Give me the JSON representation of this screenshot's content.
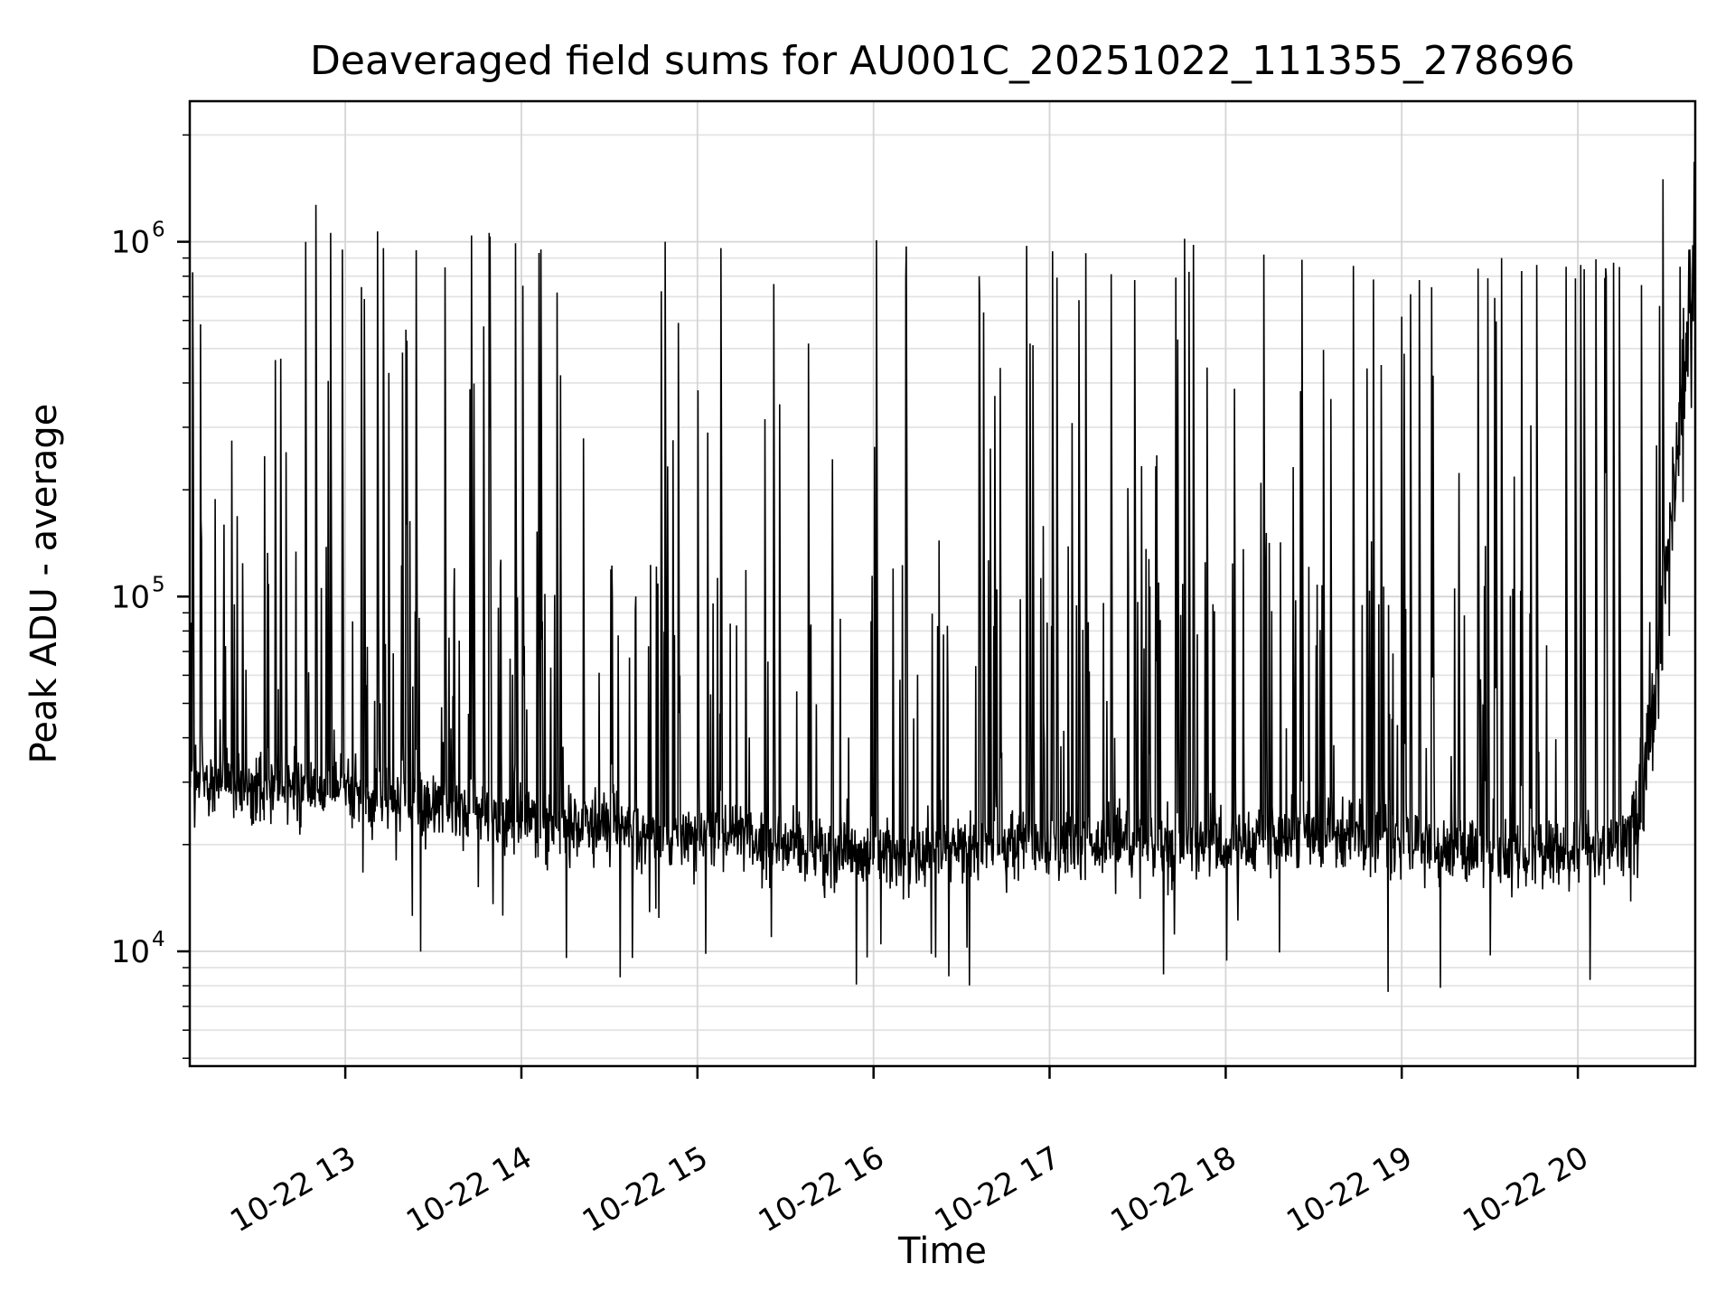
{
  "chart_data": {
    "type": "line",
    "title": "Deaveraged field sums for AU001C_20251022_111355_278696",
    "xlabel": "Time",
    "ylabel": "Peak ADU - average",
    "yscale": "log",
    "xscale": "time",
    "ylim": [
      4750,
      2490000
    ],
    "grid": "on",
    "legend": "none",
    "background": "#ffffff",
    "line": {
      "color": "#000000",
      "width": 1.6
    },
    "y_major_ticks": [
      {
        "value": 1000000,
        "base": "10",
        "exp": "6"
      },
      {
        "value": 100000,
        "base": "10",
        "exp": "5"
      },
      {
        "value": 10000,
        "base": "10",
        "exp": "4"
      }
    ],
    "x_ticks": [
      {
        "minute": 53,
        "label": "10-22 13"
      },
      {
        "minute": 113,
        "label": "10-22 14"
      },
      {
        "minute": 173,
        "label": "10-22 15"
      },
      {
        "minute": 233,
        "label": "10-22 16"
      },
      {
        "minute": 293,
        "label": "10-22 17"
      },
      {
        "minute": 353,
        "label": "10-22 18"
      },
      {
        "minute": 413,
        "label": "10-22 19"
      },
      {
        "minute": 473,
        "label": "10-22 20"
      }
    ],
    "x_start": "10-22 12:07",
    "x_end": "10-22 20:40",
    "x_total_minutes": 513,
    "sample_seconds": 10,
    "baseline_keypoints": [
      [
        0,
        30000
      ],
      [
        25,
        28500
      ],
      [
        50,
        29500
      ],
      [
        70,
        26500
      ],
      [
        95,
        24500
      ],
      [
        115,
        23500
      ],
      [
        135,
        22500
      ],
      [
        160,
        21500
      ],
      [
        185,
        20500
      ],
      [
        215,
        19500
      ],
      [
        245,
        19000
      ],
      [
        275,
        19800
      ],
      [
        305,
        20500
      ],
      [
        335,
        19800
      ],
      [
        365,
        20200
      ],
      [
        395,
        20800
      ],
      [
        420,
        19800
      ],
      [
        445,
        18800
      ],
      [
        465,
        19200
      ],
      [
        480,
        19800
      ],
      [
        488,
        20500
      ],
      [
        492,
        23000
      ],
      [
        496,
        32000
      ],
      [
        500,
        60000
      ],
      [
        503,
        110000
      ],
      [
        506,
        220000
      ],
      [
        509,
        420000
      ],
      [
        511,
        580000
      ],
      [
        513,
        880000
      ]
    ],
    "landmark_spikes": [
      [
        1,
        820000
      ],
      [
        43,
        1270000
      ],
      [
        48,
        1060000
      ],
      [
        52,
        950000
      ],
      [
        64,
        1070000
      ],
      [
        66,
        960000
      ],
      [
        102,
        1060000
      ],
      [
        111,
        990000
      ],
      [
        119,
        930000
      ],
      [
        162,
        1000000
      ],
      [
        181,
        960000
      ],
      [
        199,
        760000
      ],
      [
        234,
        1010000
      ],
      [
        244,
        790000
      ],
      [
        269,
        800000
      ],
      [
        294,
        940000
      ],
      [
        314,
        810000
      ],
      [
        322,
        780000
      ],
      [
        339,
        1020000
      ],
      [
        342,
        980000
      ],
      [
        366,
        920000
      ],
      [
        379,
        890000
      ],
      [
        419,
        780000
      ],
      [
        439,
        840000
      ],
      [
        447,
        900000
      ],
      [
        459,
        860000
      ],
      [
        469,
        850000
      ],
      [
        474,
        860000
      ],
      [
        502,
        1500000
      ],
      [
        512.6,
        1680000
      ]
    ],
    "spike_model": {
      "seed": 20251022,
      "noise_sigma_log": 0.05,
      "noise_sigma_rise": 0.09,
      "p_big": 0.034,
      "big_log_min": 5.15,
      "big_log_max": 6.02,
      "p_mid": 0.06,
      "mid_log_min": 4.55,
      "mid_log_max": 5.15,
      "p_dip": 0.012,
      "dip_log_depth": [
        0.2,
        0.45
      ],
      "spike_tail_drop": 0.55,
      "cluster": {
        "start_min": 466,
        "end_min": 488,
        "p_big": 0.1,
        "log_min": 5.88,
        "log_max": 5.96
      },
      "rise_start_min": 492
    }
  }
}
